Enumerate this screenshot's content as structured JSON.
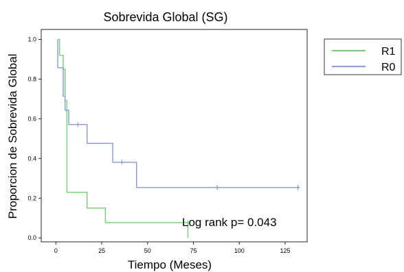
{
  "chart_data": {
    "type": "line",
    "subtype": "kaplan-meier step",
    "title": "Sobrevida Global (SG)",
    "xlabel": "Tiempo (Meses)",
    "ylabel": "Proporcion de Sobrevida Global",
    "xlim": [
      -8,
      137
    ],
    "ylim": [
      -0.02,
      1.05
    ],
    "x_ticks": [
      0,
      25,
      50,
      75,
      100,
      125
    ],
    "y_ticks": [
      0.0,
      0.2,
      0.4,
      0.6,
      0.8,
      1.0
    ],
    "x_tick_labels": [
      "0",
      "25",
      "50",
      "75",
      "100",
      "125"
    ],
    "y_tick_labels": [
      "0.0",
      "0.2",
      "0.4",
      "0.6",
      "0.8",
      "1.0"
    ],
    "grid": false,
    "legend_position": "right",
    "series": [
      {
        "name": "R1",
        "color": "#7ccf7a",
        "points": [
          [
            1,
            1.0
          ],
          [
            2,
            0.92
          ],
          [
            4,
            0.85
          ],
          [
            5,
            0.69
          ],
          [
            6,
            0.23
          ],
          [
            17,
            0.15
          ],
          [
            27,
            0.077
          ],
          [
            72,
            0.077
          ],
          [
            72,
            0.0
          ]
        ],
        "censored": [
          [
            72,
            0.077
          ]
        ]
      },
      {
        "name": "R0",
        "color": "#8fa0d0",
        "points": [
          [
            1,
            1.0
          ],
          [
            1,
            0.857
          ],
          [
            4,
            0.714
          ],
          [
            5,
            0.643
          ],
          [
            7,
            0.571
          ],
          [
            17,
            0.476
          ],
          [
            31,
            0.381
          ],
          [
            44,
            0.254
          ],
          [
            133,
            0.254
          ]
        ],
        "censored": [
          [
            12,
            0.571
          ],
          [
            36,
            0.381
          ],
          [
            88,
            0.254
          ],
          [
            132,
            0.254
          ]
        ]
      }
    ],
    "annotation": "Log rank p= 0.043"
  }
}
